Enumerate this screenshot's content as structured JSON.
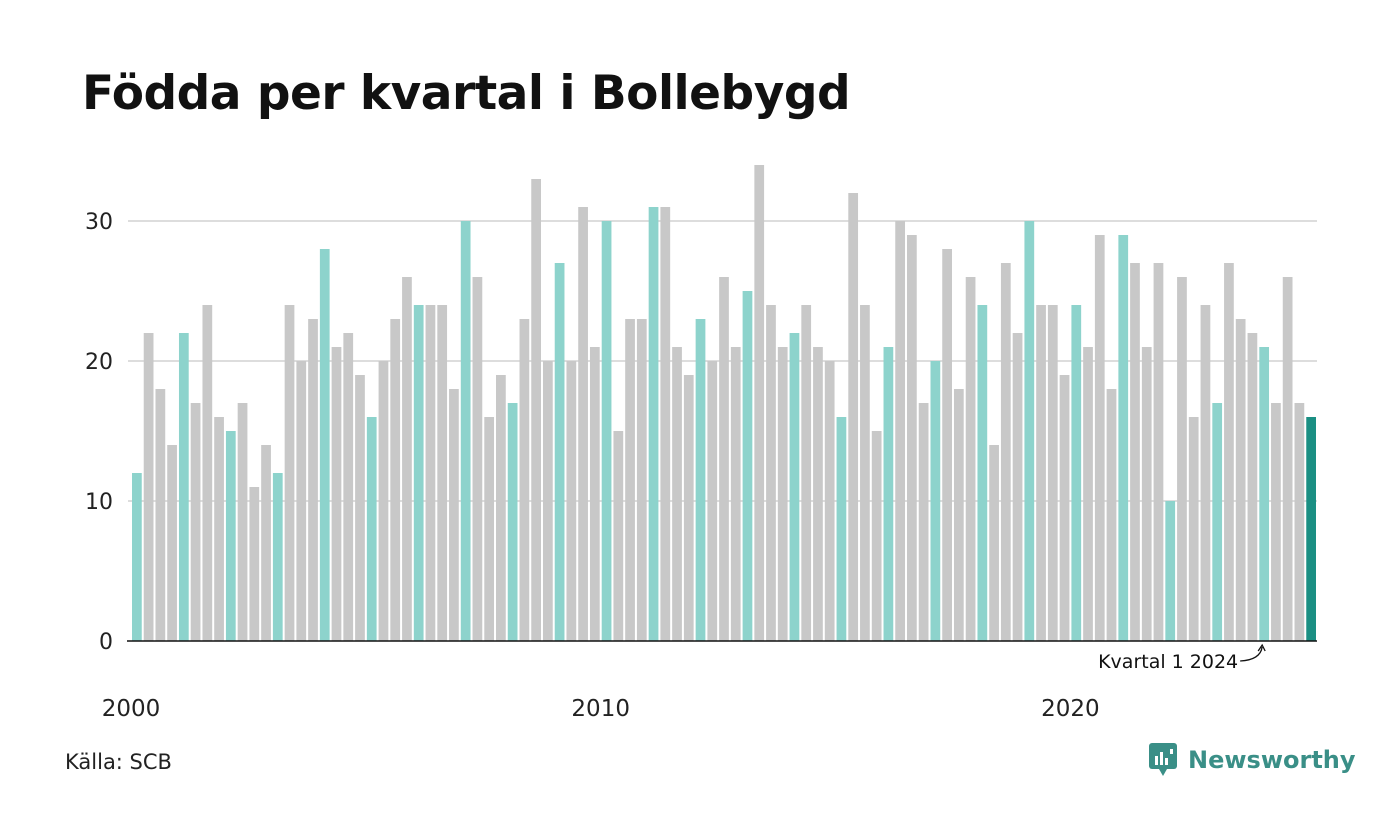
{
  "title": "Födda per kvartal i Bollebygd",
  "source": "Källa: SCB",
  "brand": "Newsworthy",
  "colors": {
    "q1": "#8dd3cc",
    "other": "#c8c8c8",
    "highlight": "#1a8f83",
    "grid": "#dddddd",
    "axis": "#111111",
    "brand": "#3a8f87"
  },
  "chart_data": {
    "type": "bar",
    "start_year": 2000,
    "quarters_per_year": 4,
    "values": [
      12,
      22,
      18,
      14,
      22,
      17,
      24,
      16,
      15,
      17,
      11,
      14,
      12,
      24,
      20,
      23,
      28,
      21,
      22,
      19,
      16,
      20,
      23,
      26,
      24,
      24,
      24,
      18,
      30,
      26,
      16,
      19,
      17,
      23,
      33,
      20,
      27,
      20,
      31,
      21,
      30,
      15,
      23,
      23,
      31,
      31,
      21,
      19,
      23,
      20,
      26,
      21,
      25,
      34,
      24,
      21,
      22,
      24,
      21,
      20,
      16,
      32,
      24,
      15,
      21,
      30,
      29,
      17,
      20,
      28,
      18,
      26,
      24,
      14,
      27,
      22,
      30,
      24,
      24,
      19,
      24,
      21,
      29,
      18,
      29,
      27,
      21,
      27,
      10,
      26,
      16,
      24,
      17,
      27,
      23,
      22,
      21,
      17,
      26,
      17,
      16
    ],
    "yticks": [
      0,
      10,
      20,
      30
    ],
    "ylim": [
      0,
      35
    ],
    "xticks": [
      "2000",
      "2010",
      "2020"
    ],
    "grid": true,
    "annotation": "Kvartal 1 2024"
  }
}
